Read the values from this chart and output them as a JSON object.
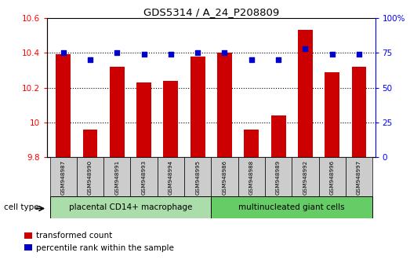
{
  "title": "GDS5314 / A_24_P208809",
  "samples": [
    "GSM948987",
    "GSM948990",
    "GSM948991",
    "GSM948993",
    "GSM948994",
    "GSM948995",
    "GSM948986",
    "GSM948988",
    "GSM948989",
    "GSM948992",
    "GSM948996",
    "GSM948997"
  ],
  "red_values": [
    10.39,
    9.96,
    10.32,
    10.23,
    10.24,
    10.38,
    10.4,
    9.96,
    10.04,
    10.53,
    10.29,
    10.32
  ],
  "blue_values": [
    75,
    70,
    75,
    74,
    74,
    75,
    75,
    70,
    70,
    78,
    74,
    74
  ],
  "group1_label": "placental CD14+ macrophage",
  "group2_label": "multinucleated giant cells",
  "group1_count": 6,
  "group2_count": 6,
  "ylim_left": [
    9.8,
    10.6
  ],
  "ylim_right": [
    0,
    100
  ],
  "yticks_left": [
    9.8,
    10.0,
    10.2,
    10.4,
    10.6
  ],
  "yticks_right": [
    0,
    25,
    50,
    75,
    100
  ],
  "ytick_labels_left": [
    "9.8",
    "10",
    "10.2",
    "10.4",
    "10.6"
  ],
  "ytick_labels_right": [
    "0",
    "25",
    "50",
    "75",
    "100%"
  ],
  "bar_color": "#cc0000",
  "dot_color": "#0000cc",
  "bar_bottom": 9.8,
  "group1_color": "#aaddaa",
  "group2_color": "#66cc66",
  "sample_box_color": "#cccccc",
  "cell_type_label": "cell type",
  "legend_red": "transformed count",
  "legend_blue": "percentile rank within the sample",
  "bar_width": 0.55
}
